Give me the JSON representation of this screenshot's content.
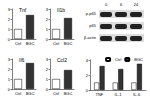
{
  "chart_data": [
    {
      "type": "bar",
      "title": "Tnf",
      "categories": [
        "Ctrl",
        "BGC"
      ],
      "values": [
        1,
        2.4
      ],
      "colors": [
        "#ffffff",
        "#333333"
      ],
      "ylim": [
        0,
        3
      ],
      "yticks": [
        0,
        1,
        2,
        3
      ]
    },
    {
      "type": "bar",
      "title": "Il1b",
      "categories": [
        "Ctrl",
        "BGC"
      ],
      "values": [
        1,
        2.1
      ],
      "colors": [
        "#ffffff",
        "#333333"
      ],
      "ylim": [
        0,
        3
      ],
      "yticks": [
        0,
        1,
        2,
        3
      ]
    },
    {
      "type": "bar",
      "title": "Il6",
      "categories": [
        "Ctrl",
        "BGC"
      ],
      "values": [
        1,
        2.6
      ],
      "colors": [
        "#ffffff",
        "#333333"
      ],
      "ylim": [
        0,
        3
      ],
      "yticks": [
        0,
        1,
        2,
        3
      ]
    },
    {
      "type": "bar",
      "title": "Ccl2",
      "categories": [
        "Ctrl",
        "BGC"
      ],
      "values": [
        1,
        1.9
      ],
      "colors": [
        "#ffffff",
        "#333333"
      ],
      "ylim": [
        0,
        3
      ],
      "yticks": [
        0,
        1,
        2,
        3
      ]
    },
    {
      "type": "bar",
      "categories": [
        "TNF",
        "IL-1",
        "IL-6"
      ],
      "legend": "upper right",
      "series": [
        {
          "name": "Ctrl",
          "color": "#ffffff",
          "values": [
            1,
            1,
            1
          ]
        },
        {
          "name": "BGC",
          "color": "#333333",
          "values": [
            3.2,
            2.8,
            3.5
          ]
        }
      ],
      "ylim": [
        0,
        4
      ],
      "yticks": [
        0,
        2,
        4
      ]
    }
  ],
  "blot": {
    "lanes": [
      "0",
      "6",
      "24"
    ],
    "rows": [
      "p-p65",
      "p65",
      "β-actin"
    ]
  }
}
